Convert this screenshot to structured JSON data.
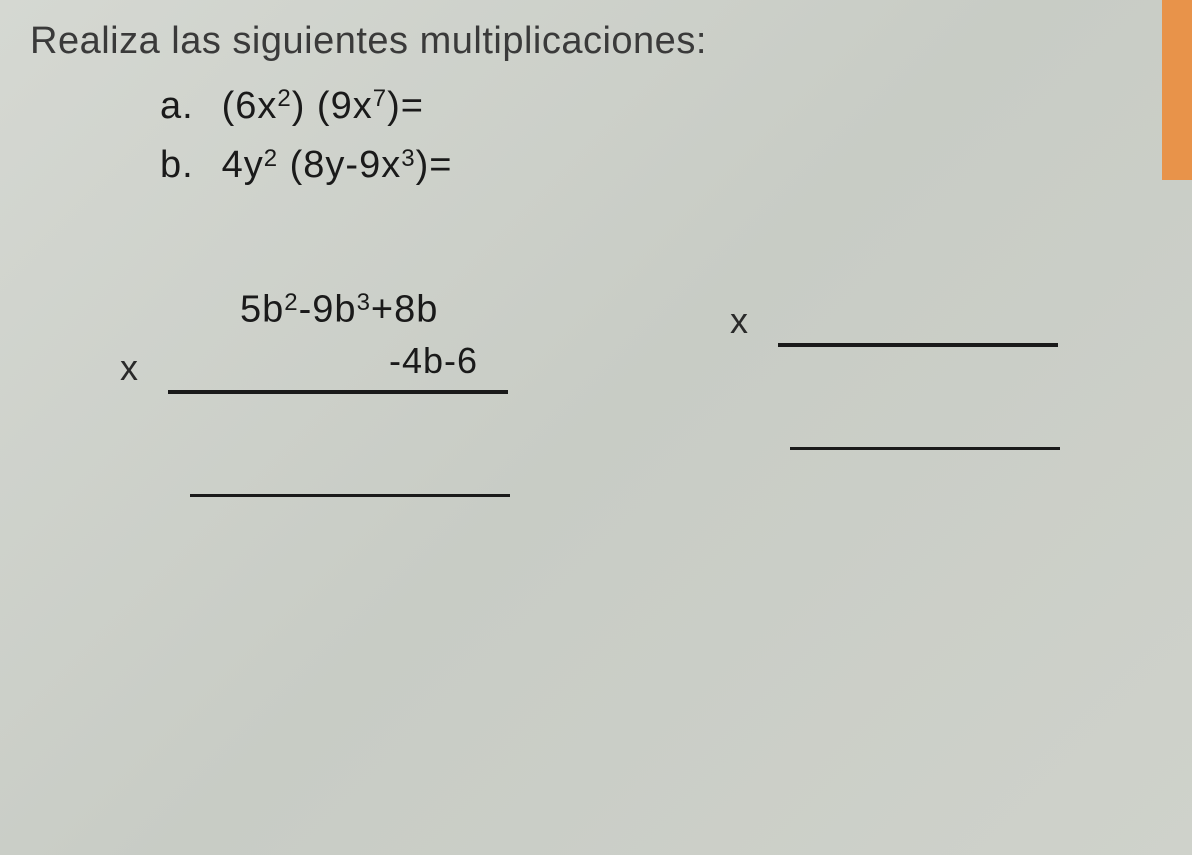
{
  "instruction": "Realiza las siguientes multiplicaciones:",
  "problems": {
    "a": {
      "label": "a.",
      "expr_parts": [
        "(6x",
        "2",
        ") (9x",
        "7",
        ")="
      ]
    },
    "b": {
      "label": "b.",
      "expr_parts": [
        "4y",
        "2",
        " (8y-9x",
        "3",
        ")="
      ]
    }
  },
  "multiplications": {
    "left": {
      "top_parts": [
        "5b",
        "2",
        "-9b",
        "3",
        "+8b"
      ],
      "multiplier": "-4b-6",
      "x_symbol": "x"
    },
    "right": {
      "top": "",
      "multiplier": "",
      "x_symbol": "x"
    }
  },
  "colors": {
    "background": "#d5d8d2",
    "text": "#2a2a2a",
    "dark_text": "#1a1a1a",
    "orange": "#e8934a",
    "line": "#1a1a1a"
  },
  "typography": {
    "font_family": "Arial",
    "instruction_size": 38,
    "problem_size": 38,
    "superscript_size": 24
  }
}
